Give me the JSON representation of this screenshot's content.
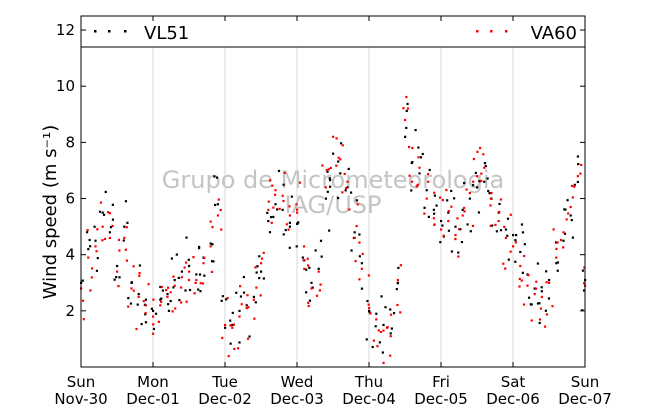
{
  "chart_data": {
    "type": "scatter",
    "title": "",
    "ylabel": "Wind speed (m s⁻¹)",
    "xlabel": "",
    "ylim": [
      0,
      12.5
    ],
    "xlim": [
      0,
      7
    ],
    "yticks": [
      2,
      4,
      6,
      8,
      10,
      12
    ],
    "xticks": [
      {
        "x": 0,
        "day": "Sun",
        "date": "Nov-30"
      },
      {
        "x": 1,
        "day": "Mon",
        "date": "Dec-01"
      },
      {
        "x": 2,
        "day": "Tue",
        "date": "Dec-02"
      },
      {
        "x": 3,
        "day": "Wed",
        "date": "Dec-03"
      },
      {
        "x": 4,
        "day": "Thu",
        "date": "Dec-04"
      },
      {
        "x": 5,
        "day": "Fri",
        "date": "Dec-05"
      },
      {
        "x": 6,
        "day": "Sat",
        "date": "Dec-06"
      },
      {
        "x": 7,
        "day": "Sun",
        "date": "Dec-07"
      }
    ],
    "grid": true,
    "legend_position": "top",
    "watermark": [
      "Grupo de Micrometeorologia",
      "IAG/USP"
    ],
    "series": [
      {
        "name": "VL51",
        "color": "#000000",
        "x": [
          0.0,
          0.1,
          0.2,
          0.3,
          0.4,
          0.5,
          0.6,
          0.7,
          0.8,
          0.9,
          1.0,
          1.1,
          1.2,
          1.3,
          1.4,
          1.5,
          1.6,
          1.7,
          1.8,
          1.9,
          2.0,
          2.1,
          2.2,
          2.3,
          2.4,
          2.5,
          2.6,
          2.7,
          2.8,
          2.9,
          3.0,
          3.1,
          3.2,
          3.3,
          3.4,
          3.5,
          3.6,
          3.7,
          3.8,
          3.9,
          4.0,
          4.1,
          4.2,
          4.3,
          4.4,
          4.5,
          4.6,
          4.7,
          4.8,
          4.9,
          5.0,
          5.1,
          5.2,
          5.3,
          5.4,
          5.5,
          5.6,
          5.7,
          5.8,
          5.9,
          6.0,
          6.1,
          6.2,
          6.3,
          6.4,
          6.5,
          6.6,
          6.7,
          6.8,
          6.9,
          7.0
        ],
        "y": [
          3.0,
          4.2,
          4.5,
          5.5,
          4.8,
          3.6,
          5.0,
          3.0,
          2.6,
          2.4,
          2.0,
          2.4,
          2.6,
          3.1,
          3.4,
          3.6,
          3.3,
          3.9,
          4.4,
          5.8,
          1.4,
          1.5,
          2.0,
          2.2,
          2.5,
          3.4,
          5.2,
          5.8,
          5.6,
          5.0,
          5.1,
          3.8,
          3.0,
          3.5,
          6.0,
          7.6,
          6.9,
          6.4,
          4.8,
          3.7,
          2.0,
          1.9,
          1.5,
          1.2,
          3.0,
          8.2,
          7.3,
          6.9,
          6.3,
          5.6,
          5.2,
          5.5,
          5.0,
          5.6,
          6.0,
          6.4,
          6.6,
          6.0,
          5.5,
          4.9,
          4.7,
          4.1,
          3.3,
          2.8,
          2.7,
          3.1,
          3.7,
          4.5,
          5.4,
          7.5,
          3.1
        ]
      },
      {
        "name": "VA60",
        "color": "#ff0000",
        "x": [
          0.0,
          0.1,
          0.2,
          0.3,
          0.4,
          0.5,
          0.6,
          0.7,
          0.8,
          0.9,
          1.0,
          1.1,
          1.2,
          1.3,
          1.4,
          1.5,
          1.6,
          1.7,
          1.8,
          1.9,
          2.0,
          2.1,
          2.2,
          2.3,
          2.4,
          2.5,
          2.6,
          2.7,
          2.8,
          2.9,
          3.0,
          3.1,
          3.2,
          3.3,
          3.4,
          3.5,
          3.6,
          3.7,
          3.8,
          3.9,
          4.0,
          4.1,
          4.2,
          4.3,
          4.4,
          4.5,
          4.6,
          4.7,
          4.8,
          4.9,
          5.0,
          5.1,
          5.2,
          5.3,
          5.4,
          5.5,
          5.6,
          5.7,
          5.8,
          5.9,
          6.0,
          6.1,
          6.2,
          6.3,
          6.4,
          6.5,
          6.6,
          6.7,
          6.8,
          6.9,
          7.0
        ],
        "y": [
          2.8,
          3.9,
          4.3,
          5.0,
          4.6,
          3.4,
          4.6,
          2.8,
          2.5,
          2.2,
          1.8,
          2.2,
          2.5,
          2.9,
          3.2,
          3.4,
          3.1,
          3.7,
          4.3,
          5.4,
          1.5,
          1.4,
          1.8,
          2.1,
          2.4,
          3.7,
          5.6,
          6.3,
          6.1,
          5.4,
          5.5,
          3.5,
          2.8,
          3.4,
          6.4,
          8.2,
          7.4,
          6.6,
          4.6,
          3.5,
          2.1,
          1.7,
          1.3,
          1.1,
          3.1,
          8.8,
          7.8,
          7.1,
          6.0,
          5.3,
          4.9,
          5.2,
          4.7,
          5.4,
          6.2,
          6.8,
          7.1,
          6.2,
          5.2,
          4.6,
          4.3,
          3.6,
          2.9,
          2.6,
          2.5,
          3.0,
          3.9,
          4.8,
          5.7,
          6.8,
          2.9
        ]
      }
    ]
  }
}
